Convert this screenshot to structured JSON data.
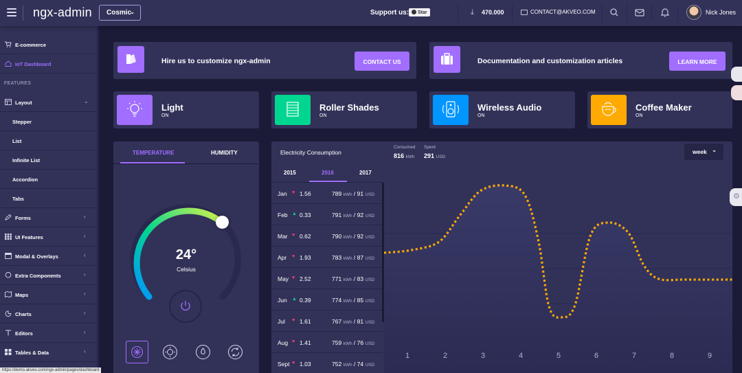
{
  "header": {
    "logo": "ngx-admin",
    "theme": "Cosmic",
    "support_label": "Support us:",
    "star_label": "Star",
    "downloads": "470.000",
    "contact_email": "CONTACT@AKVEO.COM",
    "user_name": "Nick Jones"
  },
  "sidebar": {
    "section_label": "FEATURES",
    "items": [
      {
        "label": "E-commerce",
        "icon": "cart-icon"
      },
      {
        "label": "IoT Dashboard",
        "icon": "home-icon"
      },
      {
        "label": "Layout",
        "icon": "layout-icon"
      },
      {
        "label": "Stepper"
      },
      {
        "label": "List"
      },
      {
        "label": "Infinite List"
      },
      {
        "label": "Accordion"
      },
      {
        "label": "Tabs"
      },
      {
        "label": "Forms",
        "icon": "edit-icon"
      },
      {
        "label": "UI Features",
        "icon": "keypad-icon"
      },
      {
        "label": "Modal & Overlays",
        "icon": "browser-icon"
      },
      {
        "label": "Extra Components",
        "icon": "message-icon"
      },
      {
        "label": "Maps",
        "icon": "map-icon"
      },
      {
        "label": "Charts",
        "icon": "pie-chart-icon"
      },
      {
        "label": "Editors",
        "icon": "text-icon"
      },
      {
        "label": "Tables & Data",
        "icon": "grid-icon"
      }
    ]
  },
  "promos": [
    {
      "text": "Hire us to customize ngx-admin",
      "button": "CONTACT US"
    },
    {
      "text": "Documentation and customization articles",
      "button": "LEARN MORE"
    }
  ],
  "devices": [
    {
      "name": "Light",
      "status": "ON",
      "color": "#a16eff"
    },
    {
      "name": "Roller Shades",
      "status": "ON",
      "color": "#00d68f"
    },
    {
      "name": "Wireless Audio",
      "status": "ON",
      "color": "#0095ff"
    },
    {
      "name": "Coffee Maker",
      "status": "ON",
      "color": "#ffaa00"
    }
  ],
  "temperature": {
    "tabs": [
      "TEMPERATURE",
      "HUMIDITY"
    ],
    "value": "24°",
    "unit": "Celsius"
  },
  "electricity": {
    "title": "Electricity Consumption",
    "consumed_label": "Consumed",
    "consumed_value": "816",
    "consumed_unit": "kWh",
    "spent_label": "Spent",
    "spent_value": "291",
    "spent_unit": "USD",
    "period": "week",
    "years": [
      "2015",
      "2016",
      "2017"
    ],
    "months": [
      {
        "month": "Jan",
        "dir": "down",
        "delta": "1.56",
        "kwh": "789",
        "usd": "91"
      },
      {
        "month": "Feb",
        "dir": "up",
        "delta": "0.33",
        "kwh": "791",
        "usd": "92"
      },
      {
        "month": "Mar",
        "dir": "down",
        "delta": "0.62",
        "kwh": "790",
        "usd": "92"
      },
      {
        "month": "Apr",
        "dir": "down",
        "delta": "1.93",
        "kwh": "783",
        "usd": "87"
      },
      {
        "month": "May",
        "dir": "down",
        "delta": "2.52",
        "kwh": "771",
        "usd": "83"
      },
      {
        "month": "Jun",
        "dir": "up",
        "delta": "0.39",
        "kwh": "774",
        "usd": "85"
      },
      {
        "month": "Jul",
        "dir": "down",
        "delta": "1.61",
        "kwh": "767",
        "usd": "81"
      },
      {
        "month": "Aug",
        "dir": "down",
        "delta": "1.41",
        "kwh": "759",
        "usd": "76"
      },
      {
        "month": "Sept",
        "dir": "down",
        "delta": "1.03",
        "kwh": "752",
        "usd": "74"
      }
    ],
    "x_labels": [
      "1",
      "2",
      "3",
      "4",
      "5",
      "6",
      "7",
      "8",
      "9"
    ],
    "kwh_unit": "kWh",
    "usd_unit": "USD"
  },
  "status_url": "https://demo.akveo.com/ngx-admin/pages/dashboard"
}
